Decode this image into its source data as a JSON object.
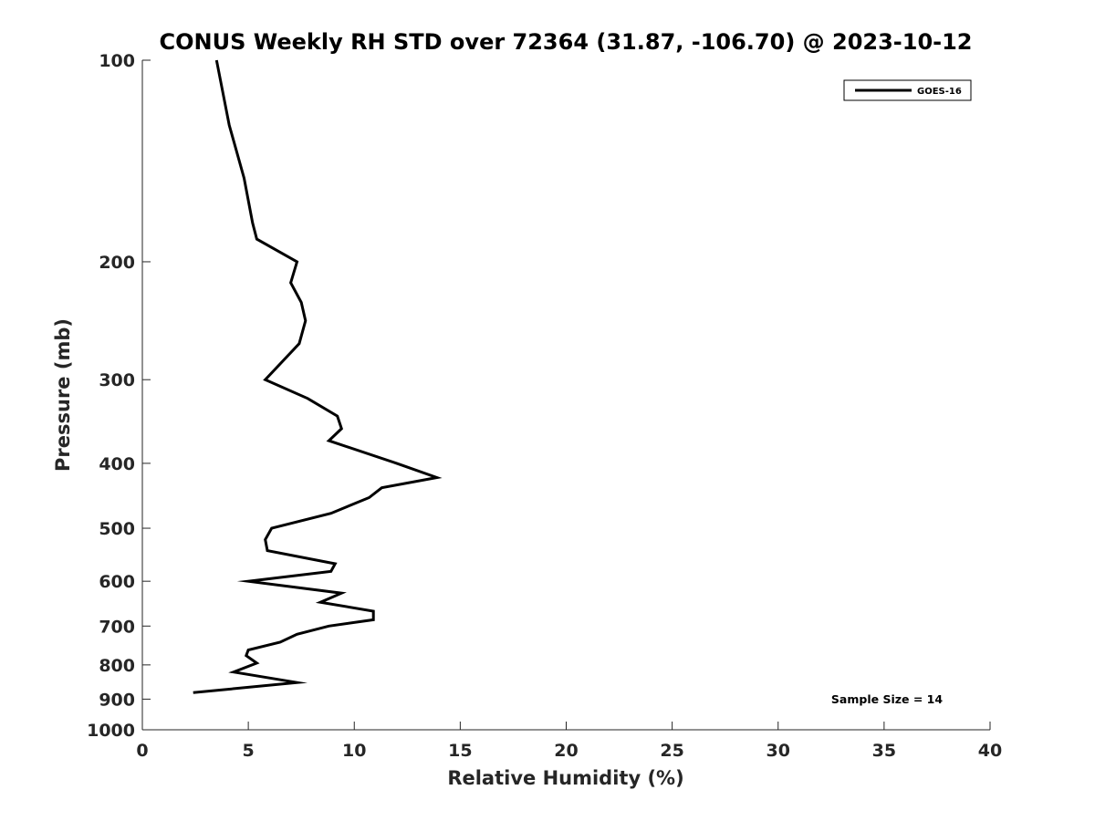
{
  "chart_data": {
    "type": "line",
    "title": "CONUS Weekly RH STD over 72364 (31.87, -106.70) @ 2023-10-12",
    "xlabel": "Relative Humidity (%)",
    "ylabel": "Pressure (mb)",
    "xlim": [
      0,
      40
    ],
    "ylim": [
      100,
      1000
    ],
    "y_scale": "log",
    "y_reversed": true,
    "x_ticks": [
      "0",
      "5",
      "10",
      "15",
      "20",
      "25",
      "30",
      "35",
      "40"
    ],
    "y_ticks": [
      "100",
      "200",
      "300",
      "400",
      "500",
      "600",
      "700",
      "800",
      "900",
      "1000"
    ],
    "grid": false,
    "legend_position": "top-right",
    "annotation": "Sample Size = 14",
    "series": [
      {
        "name": "GOES-16",
        "color": "#000000",
        "points": [
          [
            3.5,
            100
          ],
          [
            4.1,
            125
          ],
          [
            4.8,
            150
          ],
          [
            5.2,
            175
          ],
          [
            5.4,
            185
          ],
          [
            7.3,
            200
          ],
          [
            7.0,
            215
          ],
          [
            7.5,
            230
          ],
          [
            7.7,
            245
          ],
          [
            7.4,
            265
          ],
          [
            5.8,
            300
          ],
          [
            7.8,
            320
          ],
          [
            9.2,
            340
          ],
          [
            9.4,
            355
          ],
          [
            8.8,
            370
          ],
          [
            12.0,
            400
          ],
          [
            13.9,
            420
          ],
          [
            11.3,
            435
          ],
          [
            10.7,
            450
          ],
          [
            8.9,
            475
          ],
          [
            6.1,
            500
          ],
          [
            5.8,
            520
          ],
          [
            5.9,
            540
          ],
          [
            9.1,
            565
          ],
          [
            8.9,
            580
          ],
          [
            5.0,
            600
          ],
          [
            9.4,
            625
          ],
          [
            8.4,
            645
          ],
          [
            10.9,
            665
          ],
          [
            10.9,
            685
          ],
          [
            8.8,
            700
          ],
          [
            7.3,
            720
          ],
          [
            6.5,
            740
          ],
          [
            5.0,
            760
          ],
          [
            4.9,
            775
          ],
          [
            5.4,
            795
          ],
          [
            4.3,
            820
          ],
          [
            7.3,
            850
          ],
          [
            2.4,
            880
          ]
        ]
      }
    ]
  }
}
